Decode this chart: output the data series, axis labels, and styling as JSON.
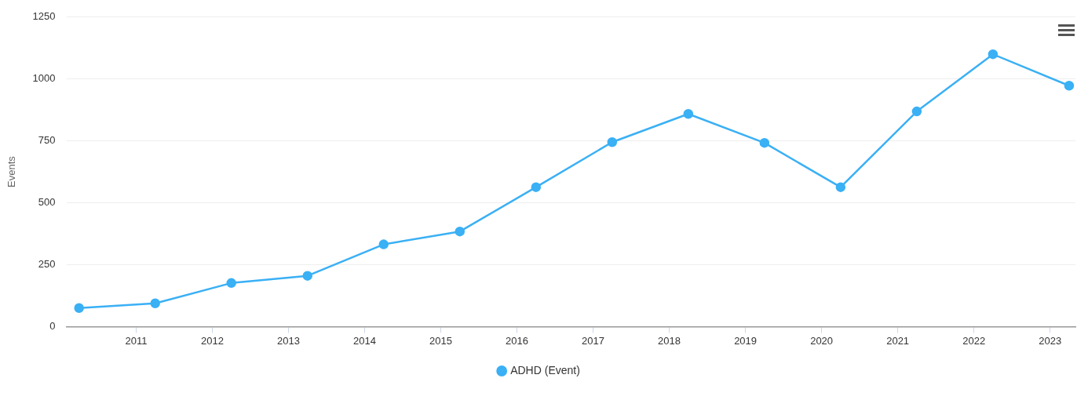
{
  "chart_data": {
    "type": "line",
    "ylabel": "Events",
    "x": [
      "2010-04",
      "2011-04",
      "2012-04",
      "2013-04",
      "2014-04",
      "2015-04",
      "2016-04",
      "2017-04",
      "2018-04",
      "2019-04",
      "2020-04",
      "2021-04",
      "2022-04",
      "2023-04"
    ],
    "series": [
      {
        "name": "ADHD (Event)",
        "color": "#3ab0f5",
        "values": [
          75,
          94,
          176,
          205,
          332,
          384,
          563,
          745,
          859,
          742,
          563,
          869,
          1100,
          973
        ]
      }
    ],
    "xlim": [
      "2010-02",
      "2023-05"
    ],
    "xticks": [
      "2011",
      "2012",
      "2013",
      "2014",
      "2015",
      "2016",
      "2017",
      "2018",
      "2019",
      "2020",
      "2021",
      "2022",
      "2023"
    ],
    "ylim": [
      0,
      1250
    ],
    "yticks": [
      0,
      250,
      500,
      750,
      1000,
      1250
    ],
    "grid": "y",
    "legend": "bottom",
    "marker": "circle",
    "line_style": "solid"
  }
}
